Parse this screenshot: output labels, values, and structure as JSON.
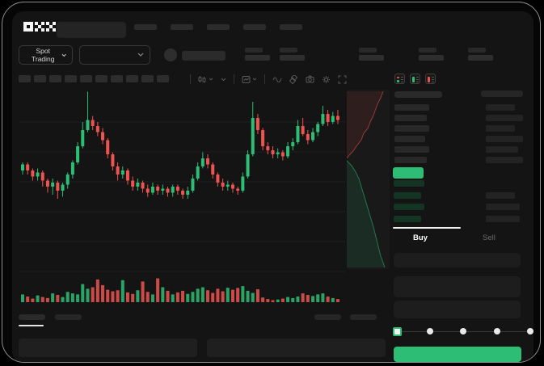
{
  "colors": {
    "green": "#2dbd74",
    "red": "#ef5350",
    "app_bg": "#141414",
    "skeleton": "#2a2a2a",
    "bid_row_green": "#153524"
  },
  "topbar": {
    "logo": "OKX",
    "nav_placeholder_count": 5
  },
  "market_bar": {
    "market_type": "Spot Trading",
    "stat_placeholder_count": 5
  },
  "chart_toolbar": {
    "timeframe_placeholder_count": 10,
    "icons": [
      "candle-style-icon",
      "chevron-down-icon",
      "indicator-icon",
      "line-type-icon",
      "compare-icon",
      "camera-icon",
      "settings-gear-icon",
      "fullscreen-icon"
    ]
  },
  "order_book": {
    "view_icons": [
      "book-both-icon",
      "book-bids-icon",
      "book-asks-icon"
    ],
    "ask_rows": [
      {
        "price_w": 43,
        "size_w": 36
      },
      {
        "price_w": 40,
        "size_w": 46
      },
      {
        "price_w": 43,
        "size_w": 36
      },
      {
        "price_w": 38,
        "size_w": 46
      },
      {
        "price_w": 43,
        "size_w": 40
      },
      {
        "price_w": 40,
        "size_w": 46
      }
    ],
    "last_price_highlight": "green",
    "bid_rows": [
      {
        "price_w": 38,
        "size_w": 0
      },
      {
        "price_w": 34,
        "size_w": 36
      },
      {
        "price_w": 38,
        "size_w": 42
      },
      {
        "price_w": 34,
        "size_w": 42
      }
    ]
  },
  "order_panel": {
    "buy_tab": "Buy",
    "sell_tab": "Sell",
    "active_tab": "Buy",
    "field_count": 3,
    "slider": {
      "stops": 5,
      "selected_index": 0
    },
    "buy_button_color": "#2dbd74"
  },
  "bottom_bar": {
    "tab_placeholder_count": 2,
    "right_placeholder_count": 2,
    "active_tab_index": 0
  },
  "chart_data": {
    "type": "candlestick",
    "title": "",
    "xlabel": "",
    "ylabel": "",
    "axis_labels_visible": false,
    "grid": "horizontal-faint",
    "units": "normalized 0-100 price scale (no axis labels rendered in mockup)",
    "up_color": "#2dbd74",
    "down_color": "#ef5350",
    "candles_ohlc": [
      [
        60,
        64,
        58,
        63
      ],
      [
        63,
        64,
        58,
        60
      ],
      [
        60,
        61,
        55,
        57
      ],
      [
        57,
        61,
        55,
        59
      ],
      [
        59,
        60,
        52,
        55
      ],
      [
        55,
        56,
        49,
        52
      ],
      [
        52,
        56,
        48,
        54
      ],
      [
        54,
        55,
        46,
        50
      ],
      [
        50,
        54,
        47,
        53
      ],
      [
        53,
        59,
        51,
        58
      ],
      [
        58,
        65,
        56,
        64
      ],
      [
        64,
        74,
        63,
        72
      ],
      [
        72,
        84,
        71,
        80
      ],
      [
        80,
        99,
        79,
        85
      ],
      [
        85,
        87,
        80,
        82
      ],
      [
        82,
        84,
        77,
        79
      ],
      [
        79,
        81,
        73,
        75
      ],
      [
        75,
        76,
        66,
        68
      ],
      [
        68,
        69,
        60,
        62
      ],
      [
        62,
        64,
        55,
        58
      ],
      [
        58,
        62,
        56,
        60
      ],
      [
        60,
        61,
        53,
        55
      ],
      [
        55,
        57,
        50,
        52
      ],
      [
        52,
        56,
        50,
        54
      ],
      [
        54,
        55,
        49,
        51
      ],
      [
        51,
        53,
        47,
        49
      ],
      [
        49,
        54,
        48,
        52
      ],
      [
        52,
        53,
        48,
        50
      ],
      [
        50,
        53,
        48,
        51
      ],
      [
        51,
        52,
        47,
        49
      ],
      [
        49,
        53,
        47,
        52
      ],
      [
        52,
        53,
        48,
        50
      ],
      [
        50,
        51,
        46,
        48
      ],
      [
        48,
        52,
        46,
        50
      ],
      [
        50,
        58,
        49,
        56
      ],
      [
        56,
        64,
        55,
        62
      ],
      [
        62,
        69,
        61,
        66
      ],
      [
        66,
        68,
        61,
        63
      ],
      [
        63,
        64,
        56,
        58
      ],
      [
        58,
        59,
        52,
        54
      ],
      [
        54,
        56,
        50,
        52
      ],
      [
        52,
        55,
        50,
        53
      ],
      [
        53,
        54,
        49,
        51
      ],
      [
        51,
        52,
        48,
        50
      ],
      [
        50,
        59,
        49,
        57
      ],
      [
        57,
        70,
        56,
        68
      ],
      [
        68,
        94,
        67,
        86
      ],
      [
        86,
        88,
        78,
        80
      ],
      [
        80,
        81,
        70,
        72
      ],
      [
        72,
        74,
        68,
        70
      ],
      [
        70,
        72,
        66,
        68
      ],
      [
        68,
        71,
        66,
        69
      ],
      [
        69,
        70,
        65,
        67
      ],
      [
        67,
        74,
        66,
        72
      ],
      [
        72,
        76,
        70,
        74
      ],
      [
        74,
        85,
        73,
        82
      ],
      [
        82,
        86,
        77,
        78
      ],
      [
        78,
        80,
        73,
        75
      ],
      [
        75,
        81,
        74,
        79
      ],
      [
        79,
        84,
        77,
        83
      ],
      [
        83,
        92,
        82,
        88
      ],
      [
        88,
        90,
        82,
        84
      ],
      [
        84,
        89,
        83,
        87
      ],
      [
        87,
        90,
        83,
        85
      ]
    ],
    "volume": [
      30,
      22,
      14,
      26,
      20,
      16,
      34,
      28,
      20,
      40,
      34,
      30,
      70,
      52,
      58,
      88,
      66,
      48,
      42,
      46,
      85,
      38,
      32,
      46,
      80,
      40,
      30,
      92,
      58,
      44,
      30,
      38,
      44,
      32,
      40,
      52,
      58,
      46,
      36,
      52,
      42,
      56,
      48,
      55,
      62,
      44,
      36,
      50,
      18,
      12,
      8,
      10,
      14,
      20,
      16,
      22,
      34,
      28,
      24,
      30,
      34,
      22,
      16,
      12
    ],
    "depth_chart": {
      "orientation": "vertical",
      "ask_curve": [
        [
          45,
          2
        ],
        [
          42,
          10
        ],
        [
          38,
          18
        ],
        [
          35,
          26
        ],
        [
          33,
          32
        ],
        [
          29,
          40
        ],
        [
          26,
          48
        ],
        [
          21,
          54
        ],
        [
          18,
          62
        ],
        [
          12,
          70
        ],
        [
          8,
          76
        ],
        [
          4,
          80
        ],
        [
          0,
          85
        ]
      ],
      "bid_curve": [
        [
          0,
          88
        ],
        [
          6,
          94
        ],
        [
          11,
          102
        ],
        [
          15,
          110
        ],
        [
          18,
          120
        ],
        [
          21,
          130
        ],
        [
          24,
          140
        ],
        [
          27,
          150
        ],
        [
          30,
          160
        ],
        [
          33,
          170
        ],
        [
          36,
          182
        ],
        [
          39,
          194
        ],
        [
          42,
          206
        ],
        [
          45,
          214
        ],
        [
          47,
          220
        ]
      ]
    }
  }
}
